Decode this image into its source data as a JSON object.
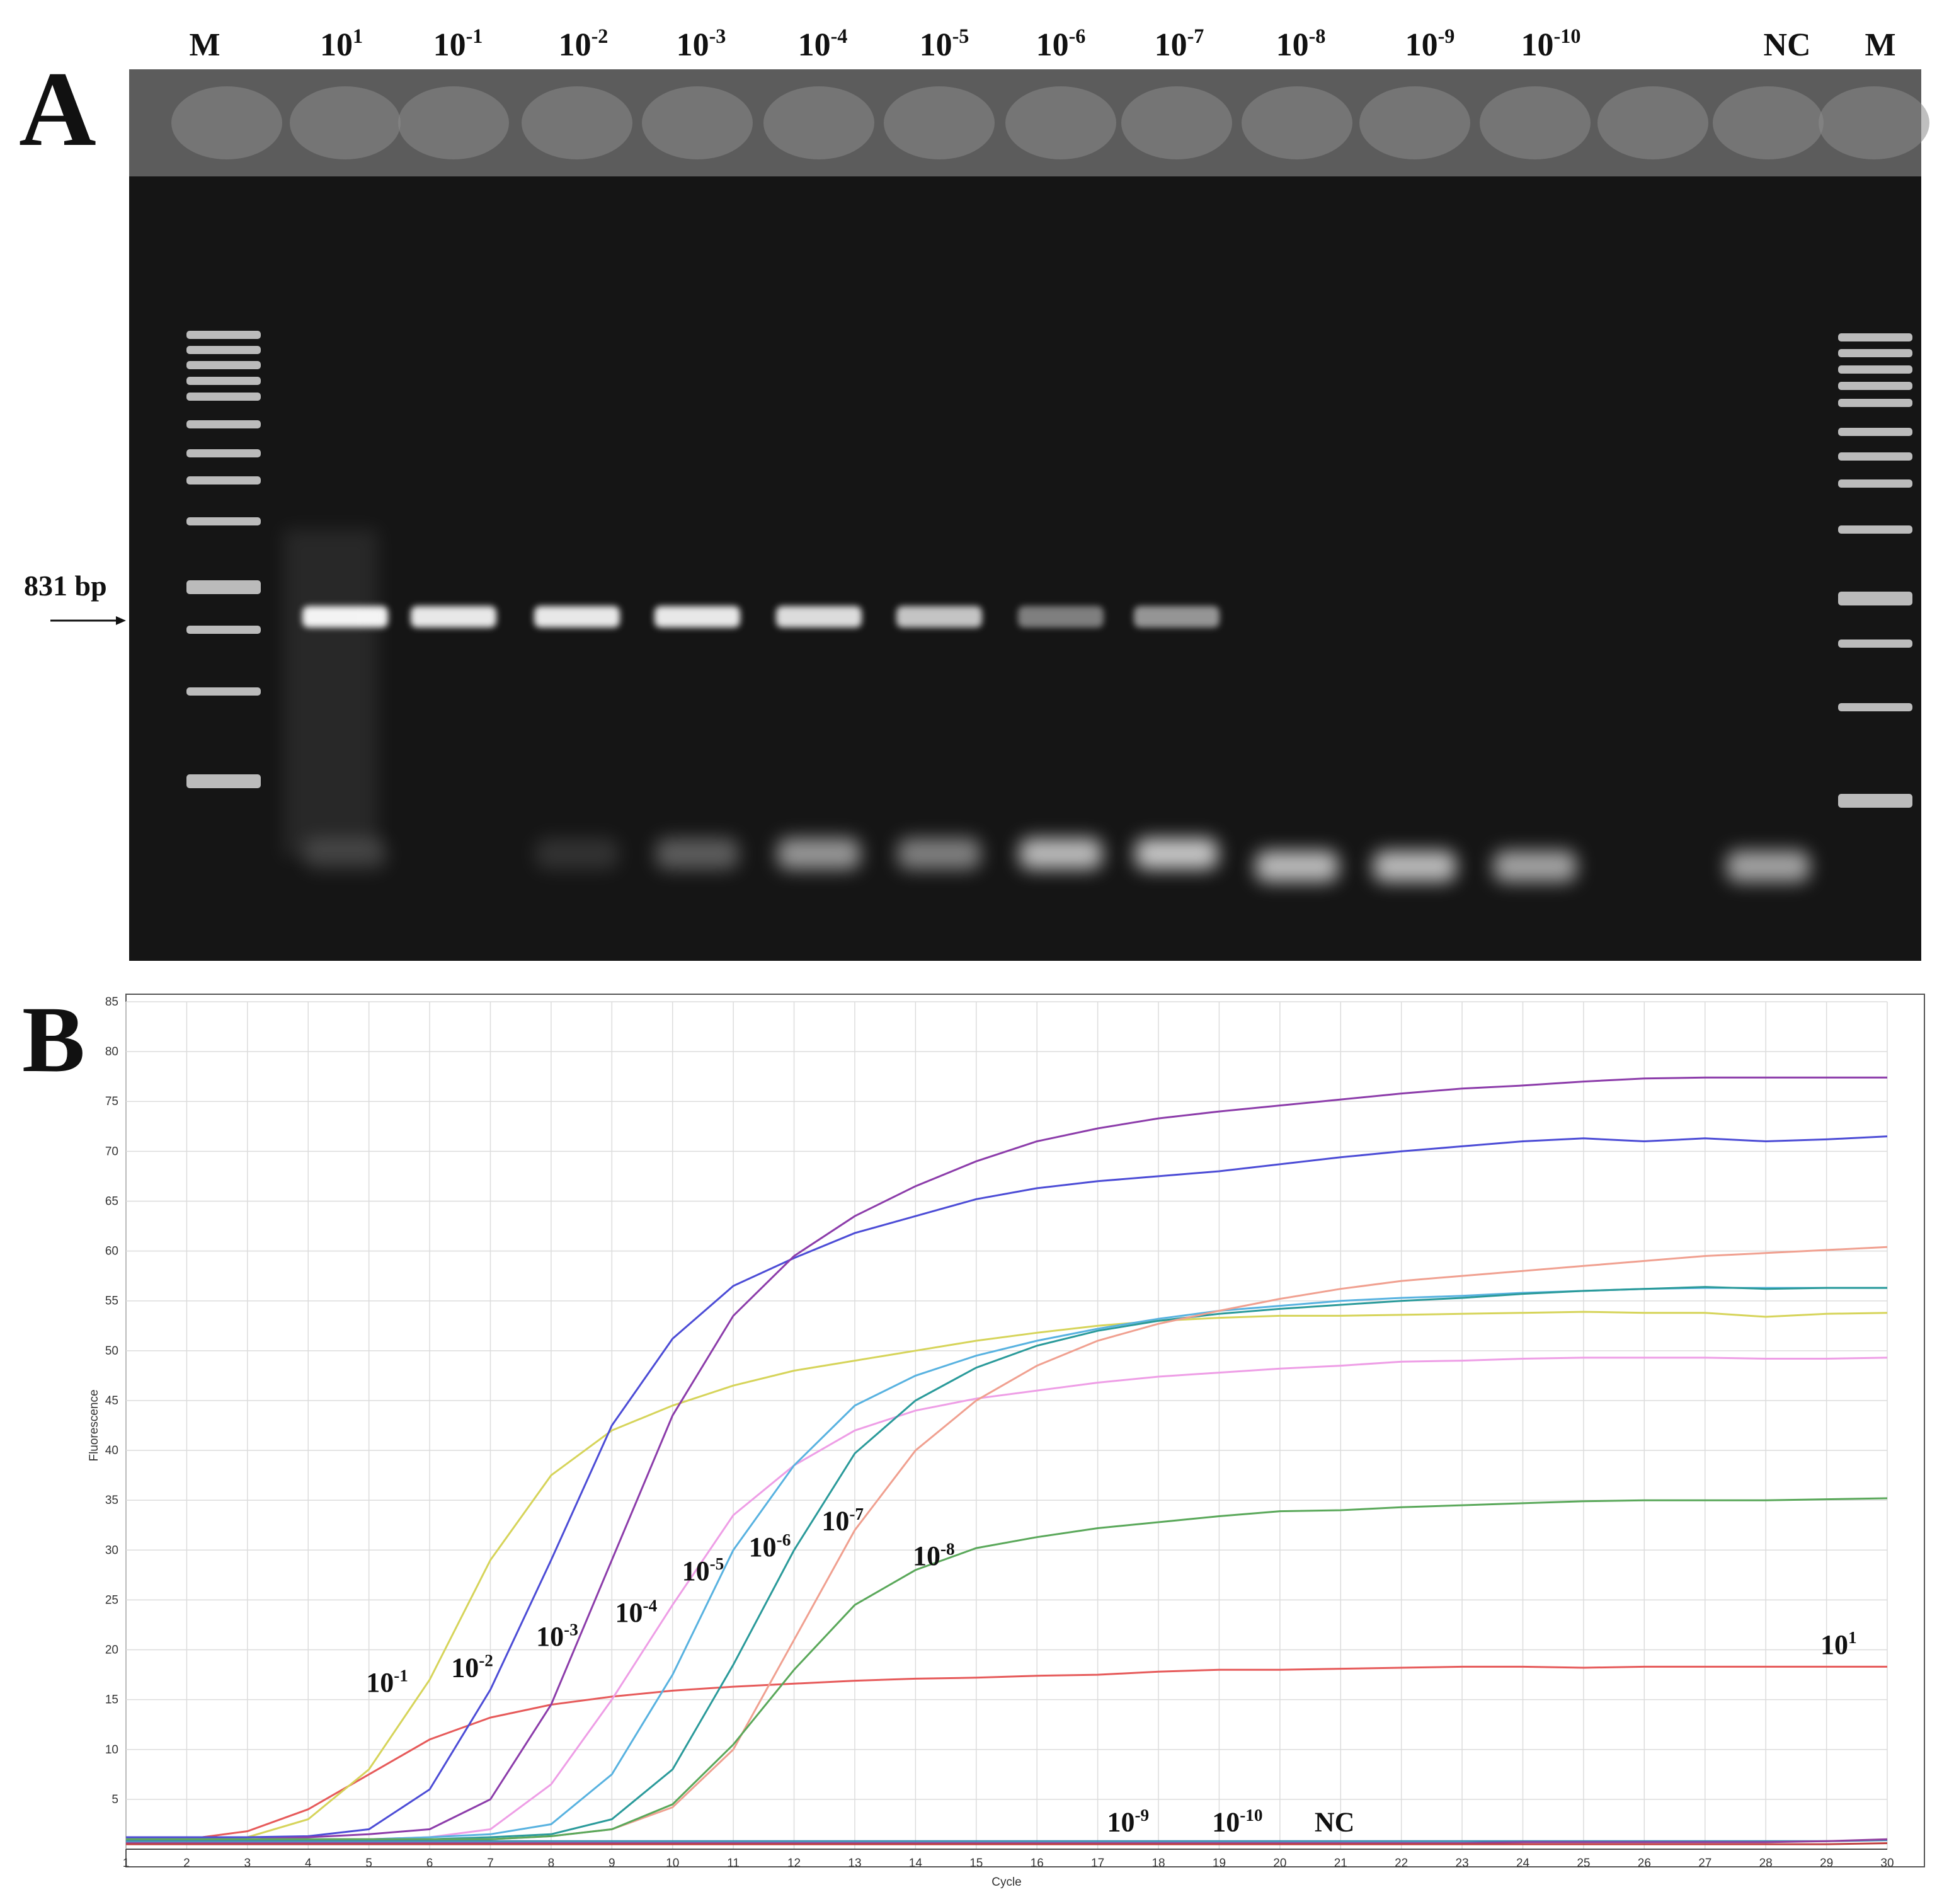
{
  "gel": {
    "panel": "A",
    "marker_label": "831 bp",
    "lanes": [
      {
        "text": "M"
      },
      {
        "base": "10",
        "exp": "1"
      },
      {
        "base": "10",
        "exp": "-1"
      },
      {
        "base": "10",
        "exp": "-2"
      },
      {
        "base": "10",
        "exp": "-3"
      },
      {
        "base": "10",
        "exp": "-4"
      },
      {
        "base": "10",
        "exp": "-5"
      },
      {
        "base": "10",
        "exp": "-6"
      },
      {
        "base": "10",
        "exp": "-7"
      },
      {
        "base": "10",
        "exp": "-8"
      },
      {
        "base": "10",
        "exp": "-9"
      },
      {
        "base": "10",
        "exp": "-10"
      },
      {
        "text": "NC"
      },
      {
        "text": "M"
      }
    ]
  },
  "chart_data": {
    "type": "line",
    "panel": "B",
    "x_label": "Cycle",
    "y_label": "Fluorescence",
    "x": [
      1,
      2,
      3,
      4,
      5,
      6,
      7,
      8,
      9,
      10,
      11,
      12,
      13,
      14,
      15,
      16,
      17,
      18,
      19,
      20,
      21,
      22,
      23,
      24,
      25,
      26,
      27,
      28,
      29,
      30
    ],
    "xlim": [
      1,
      30
    ],
    "xticks": [
      1,
      2,
      3,
      4,
      5,
      6,
      7,
      8,
      9,
      10,
      11,
      12,
      13,
      14,
      15,
      16,
      17,
      18,
      19,
      20,
      21,
      22,
      23,
      24,
      25,
      26,
      27,
      28,
      29,
      30
    ],
    "ylim": [
      0,
      85
    ],
    "yticks": [
      5,
      10,
      15,
      20,
      25,
      30,
      35,
      40,
      45,
      50,
      55,
      60,
      65,
      70,
      75,
      80,
      85
    ],
    "grid": true,
    "series": [
      {
        "name": {
          "base": "10",
          "exp": "1"
        },
        "color": "#e65a5a",
        "values": [
          1,
          1,
          1.8,
          4,
          7.5,
          11,
          13.2,
          14.5,
          15.3,
          15.9,
          16.3,
          16.6,
          16.9,
          17.1,
          17.2,
          17.4,
          17.5,
          17.8,
          18,
          18,
          18.1,
          18.2,
          18.3,
          18.3,
          18.2,
          18.3,
          18.3,
          18.3,
          18.3,
          18.3
        ]
      },
      {
        "name": {
          "base": "10",
          "exp": "-1"
        },
        "color": "#d6d45a",
        "values": [
          1,
          1,
          1.2,
          3,
          8,
          17,
          29,
          37.5,
          42,
          44.5,
          46.5,
          48,
          49,
          50,
          51,
          51.8,
          52.5,
          53,
          53.3,
          53.5,
          53.5,
          53.6,
          53.7,
          53.8,
          53.9,
          53.8,
          53.8,
          53.4,
          53.7,
          53.8
        ]
      },
      {
        "name": {
          "base": "10",
          "exp": "-2"
        },
        "color": "#4c4cd6",
        "values": [
          1.2,
          1.2,
          1.2,
          1.3,
          2,
          6,
          16,
          29,
          42.5,
          51.2,
          56.5,
          59.3,
          61.8,
          63.5,
          65.2,
          66.3,
          67,
          67.5,
          68,
          68.7,
          69.4,
          70,
          70.5,
          71,
          71.3,
          71,
          71.3,
          71,
          71.2,
          71.5
        ]
      },
      {
        "name": {
          "base": "10",
          "exp": "-3"
        },
        "color": "#8c3caa",
        "values": [
          1,
          1,
          1,
          1.2,
          1.5,
          2,
          5,
          14.5,
          29,
          43.5,
          53.5,
          59.5,
          63.5,
          66.5,
          69,
          71,
          72.3,
          73.3,
          74,
          74.6,
          75.2,
          75.8,
          76.3,
          76.6,
          77,
          77.3,
          77.4,
          77.4,
          77.4,
          77.4
        ]
      },
      {
        "name": {
          "base": "10",
          "exp": "-4"
        },
        "color": "#ee9ee6",
        "values": [
          1,
          1,
          1,
          1,
          1,
          1.2,
          2,
          6.5,
          15,
          24.5,
          33.5,
          38.5,
          42,
          44,
          45.2,
          46,
          46.8,
          47.4,
          47.8,
          48.2,
          48.5,
          48.9,
          49,
          49.2,
          49.3,
          49.3,
          49.3,
          49.2,
          49.2,
          49.3
        ]
      },
      {
        "name": {
          "base": "10",
          "exp": "-5"
        },
        "color": "#58b2e0",
        "values": [
          1,
          1,
          1,
          1,
          1,
          1.2,
          1.5,
          2.5,
          7.5,
          17.5,
          30,
          38.5,
          44.5,
          47.5,
          49.5,
          51,
          52.2,
          53.2,
          54,
          54.5,
          55,
          55.3,
          55.5,
          55.8,
          56,
          56.2,
          56.3,
          56.3,
          56.3,
          56.3
        ]
      },
      {
        "name": {
          "base": "10",
          "exp": "-6"
        },
        "color": "#2a9a9a",
        "values": [
          1,
          1,
          1,
          1,
          1,
          1,
          1.2,
          1.5,
          3,
          8,
          18.5,
          30,
          39.7,
          45,
          48.3,
          50.5,
          52,
          53,
          53.7,
          54.2,
          54.6,
          55,
          55.3,
          55.7,
          56,
          56.2,
          56.4,
          56.2,
          56.3,
          56.3
        ]
      },
      {
        "name": {
          "base": "10",
          "exp": "-7"
        },
        "color": "#f0a090",
        "values": [
          1,
          1,
          1,
          1,
          1,
          1,
          1,
          1.3,
          2,
          4.2,
          10,
          21,
          32,
          40,
          45,
          48.5,
          51,
          52.7,
          54,
          55.2,
          56.2,
          57,
          57.5,
          58,
          58.5,
          59,
          59.5,
          59.8,
          60.1,
          60.4
        ]
      },
      {
        "name": {
          "base": "10",
          "exp": "-8"
        },
        "color": "#5aa85a",
        "values": [
          1,
          1,
          1,
          1,
          1,
          1,
          1,
          1.3,
          2,
          4.5,
          10.5,
          18,
          24.5,
          28,
          30.2,
          31.3,
          32.2,
          32.8,
          33.4,
          33.9,
          34,
          34.3,
          34.5,
          34.7,
          34.9,
          35,
          35,
          35,
          35.1,
          35.2
        ]
      },
      {
        "name": {
          "base": "10",
          "exp": "-9"
        },
        "color": "#3a8ab0",
        "values": [
          0.8,
          0.8,
          0.8,
          0.8,
          0.8,
          0.8,
          0.8,
          0.8,
          0.8,
          0.8,
          0.8,
          0.8,
          0.8,
          0.8,
          0.8,
          0.8,
          0.8,
          0.8,
          0.8,
          0.8,
          0.8,
          0.8,
          0.8,
          0.8,
          0.8,
          0.8,
          0.8,
          0.8,
          0.8,
          0.9
        ]
      },
      {
        "name": {
          "base": "10",
          "exp": "-10"
        },
        "color": "#9040a0",
        "values": [
          0.6,
          0.6,
          0.6,
          0.6,
          0.6,
          0.6,
          0.6,
          0.6,
          0.6,
          0.6,
          0.6,
          0.6,
          0.6,
          0.6,
          0.6,
          0.6,
          0.6,
          0.6,
          0.6,
          0.6,
          0.6,
          0.6,
          0.6,
          0.7,
          0.7,
          0.7,
          0.7,
          0.7,
          0.8,
          1
        ]
      },
      {
        "name": {
          "text": "NC"
        },
        "color": "#c04040",
        "values": [
          0.5,
          0.5,
          0.5,
          0.5,
          0.5,
          0.5,
          0.5,
          0.5,
          0.5,
          0.5,
          0.5,
          0.5,
          0.5,
          0.5,
          0.5,
          0.5,
          0.5,
          0.5,
          0.5,
          0.5,
          0.5,
          0.5,
          0.5,
          0.5,
          0.5,
          0.5,
          0.5,
          0.5,
          0.5,
          0.6
        ]
      }
    ]
  }
}
